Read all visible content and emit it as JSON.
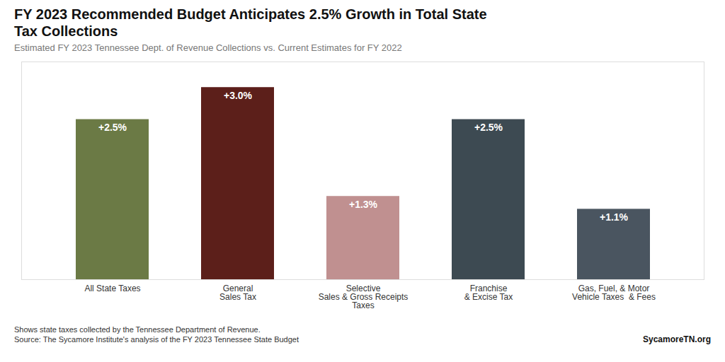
{
  "chart_data": {
    "type": "bar",
    "title": "FY 2023 Recommended Budget Anticipates 2.5% Growth in Total State\nTax Collections",
    "subtitle": "Estimated FY 2023 Tennessee Dept. of Revenue Collections vs. Current Estimates for FY 2022",
    "categories": [
      "All State Taxes",
      "General\nSales Tax",
      "Selective\nSales & Gross Receipts\nTaxes",
      "Franchise\n& Excise Tax",
      "Gas, Fuel, & Motor\nVehicle Taxes  & Fees"
    ],
    "values": [
      2.5,
      3.0,
      1.3,
      2.5,
      1.1
    ],
    "value_labels": [
      "+2.5%",
      "+3.0%",
      "+1.3%",
      "+2.5%",
      "+1.1%"
    ],
    "colors": [
      "#6b7a45",
      "#5c1f1a",
      "#c09090",
      "#3d4a52",
      "#4a5560"
    ],
    "ylim": [
      0,
      3.4
    ],
    "data_labels": true,
    "tick_labels": "x",
    "grid": false,
    "annotations": [
      "Shows state taxes collected by the Tennessee Department of Revenue.\nSource: The Sycamore Institute's analysis of the FY 2023 Tennessee State Budget",
      "SycamoreTN.org"
    ]
  }
}
